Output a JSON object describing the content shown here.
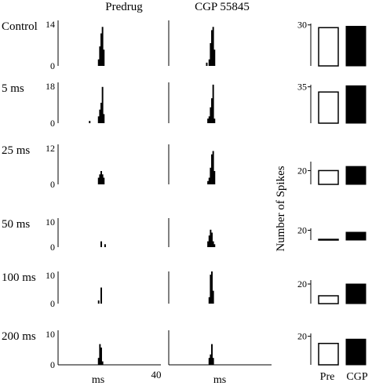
{
  "headers": {
    "predrug": "Predrug",
    "cgp": "CGP 55845"
  },
  "y_axis_label": "Number of Spikes",
  "x_axis": {
    "min_label": "",
    "max_label": "40",
    "unit": "ms"
  },
  "bar_labels": {
    "pre": "Pre",
    "cgp": "CGP"
  },
  "colors": {
    "ink": "#000000",
    "background": "#ffffff"
  },
  "chart_data": {
    "type": "bar",
    "description_note": "",
    "rows": [
      {
        "label": "Control",
        "hist_ymax": 14,
        "predrug_bins": {
          "x": [
            15.5,
            16,
            16.5,
            17,
            17.5
          ],
          "counts": [
            2,
            6,
            10,
            12,
            5
          ]
        },
        "cgp_bins": {
          "x": [
            14.5,
            15.5,
            16,
            16.5,
            17,
            17.5
          ],
          "counts": [
            1,
            2,
            7,
            11,
            12,
            5
          ]
        },
        "spikes": {
          "pre": 28,
          "cgp": 29,
          "ytick": 30,
          "ylim": [
            0,
            31
          ]
        }
      },
      {
        "label": "5 ms",
        "hist_ymax": 18,
        "predrug_bins": {
          "x": [
            12,
            15.5,
            16,
            16.5,
            17,
            17.5
          ],
          "counts": [
            1,
            3,
            6,
            9,
            16,
            4
          ]
        },
        "cgp_bins": {
          "x": [
            15,
            15.5,
            16,
            16.5,
            17,
            17.5
          ],
          "counts": [
            2,
            3,
            7,
            11,
            17,
            2
          ]
        },
        "spikes": {
          "pre": 30,
          "cgp": 36,
          "ytick": 35,
          "ylim": [
            0,
            37
          ]
        }
      },
      {
        "label": "25 ms",
        "hist_ymax": 12,
        "predrug_bins": {
          "x": [
            15.5,
            16,
            16.5,
            17,
            17.5
          ],
          "counts": [
            2,
            3,
            4,
            3,
            2
          ]
        },
        "cgp_bins": {
          "x": [
            15,
            15.5,
            16,
            16.5,
            17,
            17.5
          ],
          "counts": [
            1,
            2,
            5,
            9,
            10,
            4
          ]
        },
        "spikes": {
          "pre": 20,
          "cgp": 26,
          "ytick": 20,
          "ylim": [
            0,
            33
          ]
        }
      },
      {
        "label": "50 ms",
        "hist_ymax": 10,
        "predrug_bins": {
          "x": [
            16.5,
            18
          ],
          "counts": [
            2,
            1
          ]
        },
        "cgp_bins": {
          "x": [
            15,
            15.5,
            16,
            16.5,
            17,
            17.5
          ],
          "counts": [
            2,
            4,
            6,
            5,
            2,
            1
          ]
        },
        "spikes": {
          "pre": 1.5,
          "cgp": 16,
          "ytick": 20,
          "ylim": [
            0,
            24
          ]
        }
      },
      {
        "label": "100 ms",
        "hist_ymax": 10,
        "predrug_bins": {
          "x": [
            15.5,
            16.5
          ],
          "counts": [
            1,
            5
          ]
        },
        "cgp_bins": {
          "x": [
            15.5,
            16,
            16.5,
            17
          ],
          "counts": [
            2,
            9,
            10,
            4
          ]
        },
        "spikes": {
          "pre": 8,
          "cgp": 20,
          "ytick": 20,
          "ylim": [
            0,
            24
          ]
        }
      },
      {
        "label": "200 ms",
        "hist_ymax": 10,
        "predrug_bins": {
          "x": [
            15.5,
            16,
            16.5,
            17
          ],
          "counts": [
            2,
            6,
            5,
            1
          ]
        },
        "cgp_bins": {
          "x": [
            15.5,
            16,
            16.5,
            17
          ],
          "counts": [
            2,
            3,
            6,
            2
          ]
        },
        "spikes": {
          "pre": 15,
          "cgp": 18,
          "ytick": 20,
          "ylim": [
            0,
            22
          ]
        }
      }
    ],
    "hist_xlim": [
      0,
      40
    ]
  }
}
